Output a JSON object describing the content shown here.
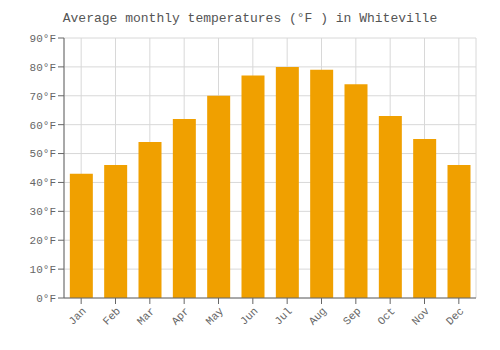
{
  "chart_data": {
    "type": "bar",
    "title": "Average monthly temperatures (°F ) in Whiteville",
    "categories": [
      "Jan",
      "Feb",
      "Mar",
      "Apr",
      "May",
      "Jun",
      "Jul",
      "Aug",
      "Sep",
      "Oct",
      "Nov",
      "Dec"
    ],
    "values": [
      43,
      46,
      54,
      62,
      70,
      77,
      80,
      79,
      74,
      63,
      55,
      46
    ],
    "color": "#F0A000",
    "ylim": [
      0,
      90
    ],
    "yticks": [
      {
        "value": 0,
        "label": "0°F"
      },
      {
        "value": 10,
        "label": "10°F"
      },
      {
        "value": 20,
        "label": "20°F"
      },
      {
        "value": 30,
        "label": "30°F"
      },
      {
        "value": 40,
        "label": "40°F"
      },
      {
        "value": 50,
        "label": "50°F"
      },
      {
        "value": 60,
        "label": "60°F"
      },
      {
        "value": 70,
        "label": "70°F"
      },
      {
        "value": 80,
        "label": "80°F"
      },
      {
        "value": 90,
        "label": "90°F"
      }
    ],
    "grid": true
  }
}
